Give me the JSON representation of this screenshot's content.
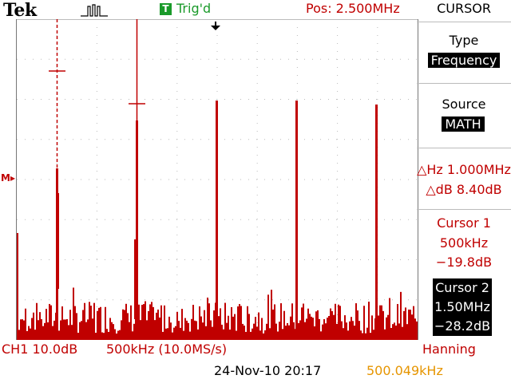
{
  "header": {
    "brand": "Tek",
    "acquire_icon": "pulse-run-icon",
    "trigger_badge": "T",
    "trigger_status": "Trig'd",
    "position": "Pos: 2.500MHz",
    "trigger_marker_icon": "trigger-position-arrow-icon"
  },
  "menu": {
    "title": "CURSOR",
    "type_label": "Type",
    "type_value": "Frequency",
    "source_label": "Source",
    "source_value": "MATH",
    "delta_hz": "△Hz 1.000MHz",
    "delta_db": "△dB 8.40dB",
    "cursor1_label": "Cursor 1",
    "cursor1_freq": "500kHz",
    "cursor1_level": "−19.8dB",
    "cursor2_label": "Cursor 2",
    "cursor2_freq": "1.50MHz",
    "cursor2_level": "−28.2dB"
  },
  "footer": {
    "channel": "CH1 10.0dB",
    "timebase": "500kHz (10.0MS/s)",
    "window": "Hanning",
    "datetime": "24-Nov-10 20:17",
    "frequency": "500.049kHz"
  },
  "waveform": {
    "math_marker": "M",
    "trace_color": "#c00000",
    "grid_color": "#bbbbbb",
    "cursor_color": "#c00000",
    "trigger_color": "#1a9a2a"
  }
}
